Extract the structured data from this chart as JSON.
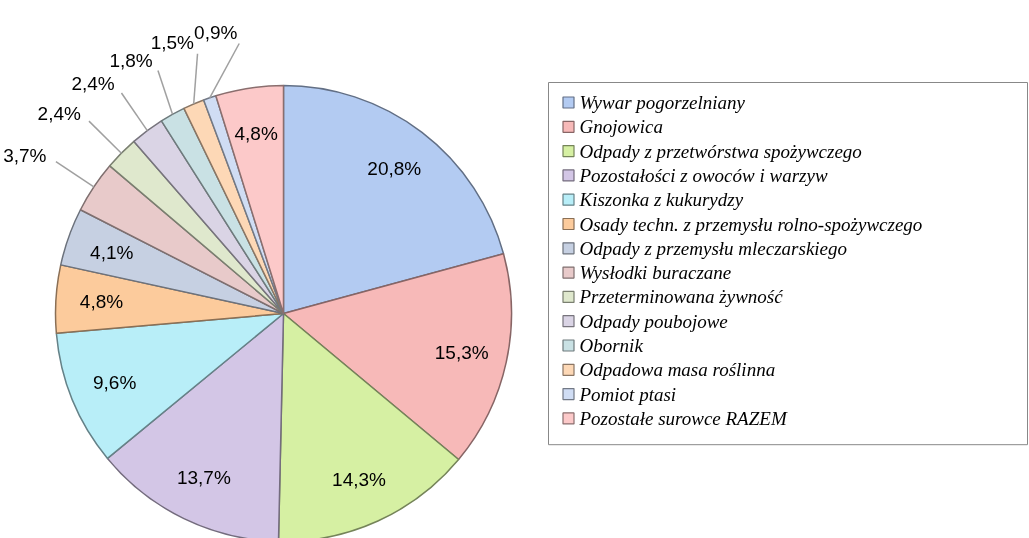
{
  "chart_data": {
    "type": "pie",
    "categories": [
      "Wywar pogorzelniany",
      "Gnojowica",
      "Odpady z przetwórstwa spożywczego",
      "Pozostałości z owoców i warzyw",
      "Kiszonka z kukurydzy",
      "Osady techn. z przemysłu rolno-spożywczego",
      "Odpady z przemysłu mleczarskiego",
      "Wysłodki buraczane",
      "Przeterminowana żywność",
      "Odpady poubojowe",
      "Obornik",
      "Odpadowa masa roślinna",
      "Pomiot ptasi",
      "Pozostałe surowce RAZEM"
    ],
    "values": [
      20.8,
      15.3,
      14.3,
      13.7,
      9.6,
      4.8,
      4.1,
      3.7,
      2.4,
      2.4,
      1.8,
      1.5,
      0.9,
      4.8
    ],
    "value_labels": [
      "20,8%",
      "15,3%",
      "14,3%",
      "13,7%",
      "9,6%",
      "4,8%",
      "4,1%",
      "3,7%",
      "2,4%",
      "2,4%",
      "1,8%",
      "1,5%",
      "0,9%",
      "4,8%"
    ],
    "colors": [
      "#b3cbf2",
      "#f7b9b8",
      "#d6f0a3",
      "#d3c6e6",
      "#b8eef8",
      "#fccb9c",
      "#c6d0e2",
      "#e8caca",
      "#dfe8cd",
      "#dad4e5",
      "#c9e1e4",
      "#fdd8b6",
      "#d0ddf4",
      "#fcc9c9"
    ],
    "legend": "right"
  }
}
